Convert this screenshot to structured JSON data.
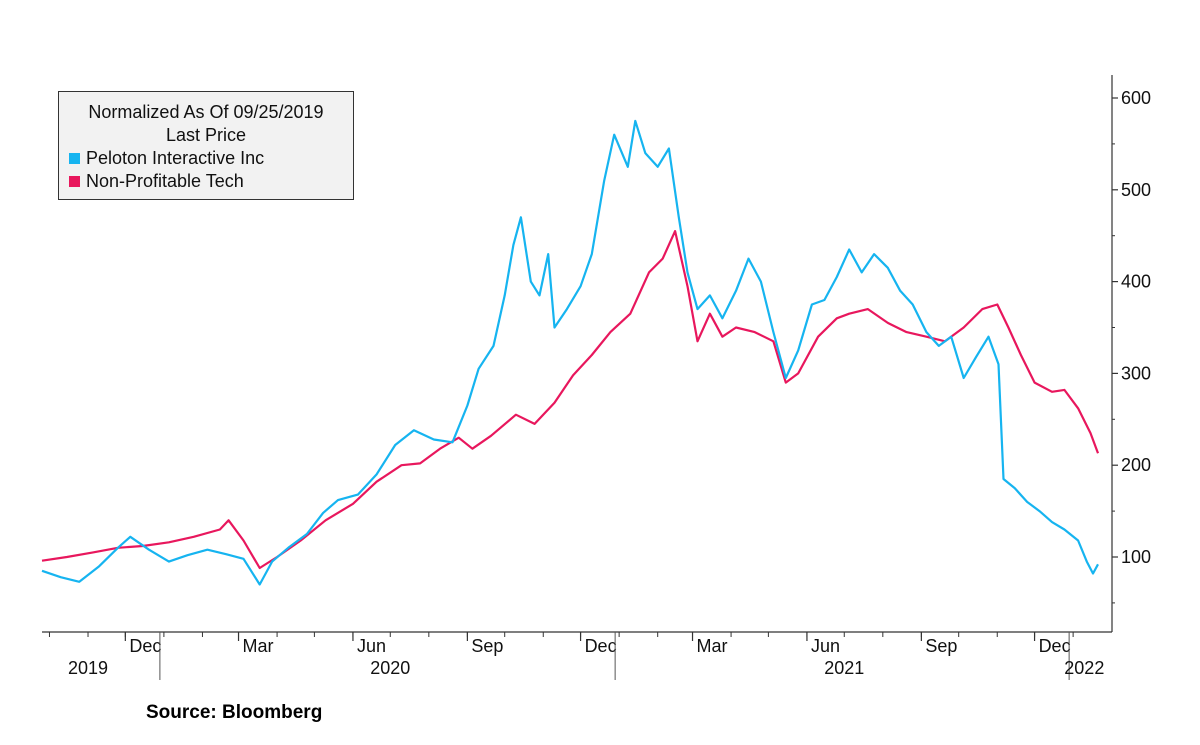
{
  "legend": {
    "title_line1": "Normalized As Of 09/25/2019",
    "title_line2": "Last Price",
    "entries": [
      {
        "label": "Peloton Interactive Inc",
        "color": "#16b4f0"
      },
      {
        "label": "Non-Profitable Tech",
        "color": "#e8175d"
      }
    ]
  },
  "source": "Source: Bloomberg",
  "chart_data": {
    "type": "line",
    "title": "",
    "xlabel": "",
    "ylabel": "",
    "ylim": [
      30,
      620
    ],
    "xlim": [
      "2019-09-25",
      "2022-01-21"
    ],
    "yticks": [
      100,
      200,
      300,
      400,
      500,
      600
    ],
    "month_ticks": [
      {
        "date": "2019-12-01",
        "label": "Dec"
      },
      {
        "date": "2020-03-01",
        "label": "Mar"
      },
      {
        "date": "2020-06-01",
        "label": "Jun"
      },
      {
        "date": "2020-09-01",
        "label": "Sep"
      },
      {
        "date": "2020-12-01",
        "label": "Dec"
      },
      {
        "date": "2021-03-01",
        "label": "Mar"
      },
      {
        "date": "2021-06-01",
        "label": "Jun"
      },
      {
        "date": "2021-09-01",
        "label": "Sep"
      },
      {
        "date": "2021-12-01",
        "label": "Dec"
      }
    ],
    "year_labels": [
      {
        "date": "2019-11-01",
        "label": "2019"
      },
      {
        "date": "2020-07-01",
        "label": "2020"
      },
      {
        "date": "2021-07-01",
        "label": "2021"
      },
      {
        "date": "2022-01-10",
        "label": "2022"
      }
    ],
    "year_dividers": [
      "2020-01-01",
      "2021-01-01",
      "2022-01-01"
    ],
    "series": [
      {
        "name": "Peloton Interactive Inc",
        "color": "#16b4f0",
        "points": [
          [
            "2019-09-25",
            85
          ],
          [
            "2019-10-10",
            78
          ],
          [
            "2019-10-25",
            73
          ],
          [
            "2019-11-10",
            90
          ],
          [
            "2019-11-25",
            110
          ],
          [
            "2019-12-05",
            122
          ],
          [
            "2019-12-20",
            108
          ],
          [
            "2020-01-05",
            95
          ],
          [
            "2020-01-20",
            102
          ],
          [
            "2020-02-05",
            108
          ],
          [
            "2020-02-20",
            103
          ],
          [
            "2020-03-05",
            98
          ],
          [
            "2020-03-18",
            70
          ],
          [
            "2020-03-28",
            95
          ],
          [
            "2020-04-10",
            110
          ],
          [
            "2020-04-25",
            125
          ],
          [
            "2020-05-08",
            148
          ],
          [
            "2020-05-20",
            162
          ],
          [
            "2020-06-05",
            168
          ],
          [
            "2020-06-20",
            190
          ],
          [
            "2020-07-05",
            222
          ],
          [
            "2020-07-20",
            238
          ],
          [
            "2020-08-05",
            228
          ],
          [
            "2020-08-20",
            225
          ],
          [
            "2020-09-01",
            265
          ],
          [
            "2020-09-10",
            305
          ],
          [
            "2020-09-22",
            330
          ],
          [
            "2020-10-01",
            385
          ],
          [
            "2020-10-08",
            440
          ],
          [
            "2020-10-14",
            470
          ],
          [
            "2020-10-22",
            400
          ],
          [
            "2020-10-29",
            385
          ],
          [
            "2020-11-05",
            430
          ],
          [
            "2020-11-10",
            350
          ],
          [
            "2020-11-20",
            370
          ],
          [
            "2020-12-01",
            395
          ],
          [
            "2020-12-10",
            430
          ],
          [
            "2020-12-20",
            510
          ],
          [
            "2020-12-28",
            560
          ],
          [
            "2021-01-08",
            525
          ],
          [
            "2021-01-14",
            575
          ],
          [
            "2021-01-22",
            540
          ],
          [
            "2021-02-01",
            525
          ],
          [
            "2021-02-10",
            545
          ],
          [
            "2021-02-18",
            470
          ],
          [
            "2021-02-25",
            410
          ],
          [
            "2021-03-05",
            370
          ],
          [
            "2021-03-15",
            385
          ],
          [
            "2021-03-25",
            360
          ],
          [
            "2021-04-05",
            390
          ],
          [
            "2021-04-15",
            425
          ],
          [
            "2021-04-25",
            400
          ],
          [
            "2021-05-05",
            345
          ],
          [
            "2021-05-15",
            295
          ],
          [
            "2021-05-25",
            325
          ],
          [
            "2021-06-05",
            375
          ],
          [
            "2021-06-15",
            380
          ],
          [
            "2021-06-25",
            405
          ],
          [
            "2021-07-05",
            435
          ],
          [
            "2021-07-15",
            410
          ],
          [
            "2021-07-25",
            430
          ],
          [
            "2021-08-05",
            415
          ],
          [
            "2021-08-15",
            390
          ],
          [
            "2021-08-25",
            375
          ],
          [
            "2021-09-05",
            345
          ],
          [
            "2021-09-15",
            330
          ],
          [
            "2021-09-25",
            340
          ],
          [
            "2021-10-05",
            295
          ],
          [
            "2021-10-15",
            318
          ],
          [
            "2021-10-25",
            340
          ],
          [
            "2021-11-02",
            310
          ],
          [
            "2021-11-06",
            185
          ],
          [
            "2021-11-15",
            175
          ],
          [
            "2021-11-25",
            160
          ],
          [
            "2021-12-05",
            150
          ],
          [
            "2021-12-15",
            138
          ],
          [
            "2021-12-25",
            130
          ],
          [
            "2022-01-05",
            118
          ],
          [
            "2022-01-12",
            95
          ],
          [
            "2022-01-17",
            82
          ],
          [
            "2022-01-21",
            92
          ]
        ]
      },
      {
        "name": "Non-Profitable Tech",
        "color": "#e8175d",
        "points": [
          [
            "2019-09-25",
            96
          ],
          [
            "2019-10-15",
            100
          ],
          [
            "2019-11-05",
            105
          ],
          [
            "2019-11-25",
            110
          ],
          [
            "2019-12-15",
            112
          ],
          [
            "2020-01-05",
            116
          ],
          [
            "2020-01-25",
            122
          ],
          [
            "2020-02-15",
            130
          ],
          [
            "2020-02-22",
            140
          ],
          [
            "2020-03-05",
            118
          ],
          [
            "2020-03-18",
            88
          ],
          [
            "2020-04-01",
            100
          ],
          [
            "2020-04-20",
            118
          ],
          [
            "2020-05-10",
            140
          ],
          [
            "2020-06-01",
            158
          ],
          [
            "2020-06-20",
            182
          ],
          [
            "2020-07-10",
            200
          ],
          [
            "2020-07-25",
            202
          ],
          [
            "2020-08-10",
            218
          ],
          [
            "2020-08-25",
            230
          ],
          [
            "2020-09-05",
            218
          ],
          [
            "2020-09-20",
            232
          ],
          [
            "2020-10-10",
            255
          ],
          [
            "2020-10-25",
            245
          ],
          [
            "2020-11-10",
            268
          ],
          [
            "2020-11-25",
            298
          ],
          [
            "2020-12-10",
            320
          ],
          [
            "2020-12-25",
            345
          ],
          [
            "2021-01-10",
            365
          ],
          [
            "2021-01-25",
            410
          ],
          [
            "2021-02-05",
            425
          ],
          [
            "2021-02-15",
            455
          ],
          [
            "2021-02-25",
            395
          ],
          [
            "2021-03-05",
            335
          ],
          [
            "2021-03-15",
            365
          ],
          [
            "2021-03-25",
            340
          ],
          [
            "2021-04-05",
            350
          ],
          [
            "2021-04-20",
            345
          ],
          [
            "2021-05-05",
            335
          ],
          [
            "2021-05-15",
            290
          ],
          [
            "2021-05-25",
            300
          ],
          [
            "2021-06-10",
            340
          ],
          [
            "2021-06-25",
            360
          ],
          [
            "2021-07-05",
            365
          ],
          [
            "2021-07-20",
            370
          ],
          [
            "2021-08-05",
            355
          ],
          [
            "2021-08-20",
            345
          ],
          [
            "2021-09-05",
            340
          ],
          [
            "2021-09-20",
            335
          ],
          [
            "2021-10-05",
            350
          ],
          [
            "2021-10-20",
            370
          ],
          [
            "2021-11-01",
            375
          ],
          [
            "2021-11-10",
            350
          ],
          [
            "2021-11-20",
            320
          ],
          [
            "2021-12-01",
            290
          ],
          [
            "2021-12-15",
            280
          ],
          [
            "2021-12-25",
            282
          ],
          [
            "2022-01-05",
            262
          ],
          [
            "2022-01-15",
            235
          ],
          [
            "2022-01-21",
            213
          ]
        ]
      }
    ]
  }
}
